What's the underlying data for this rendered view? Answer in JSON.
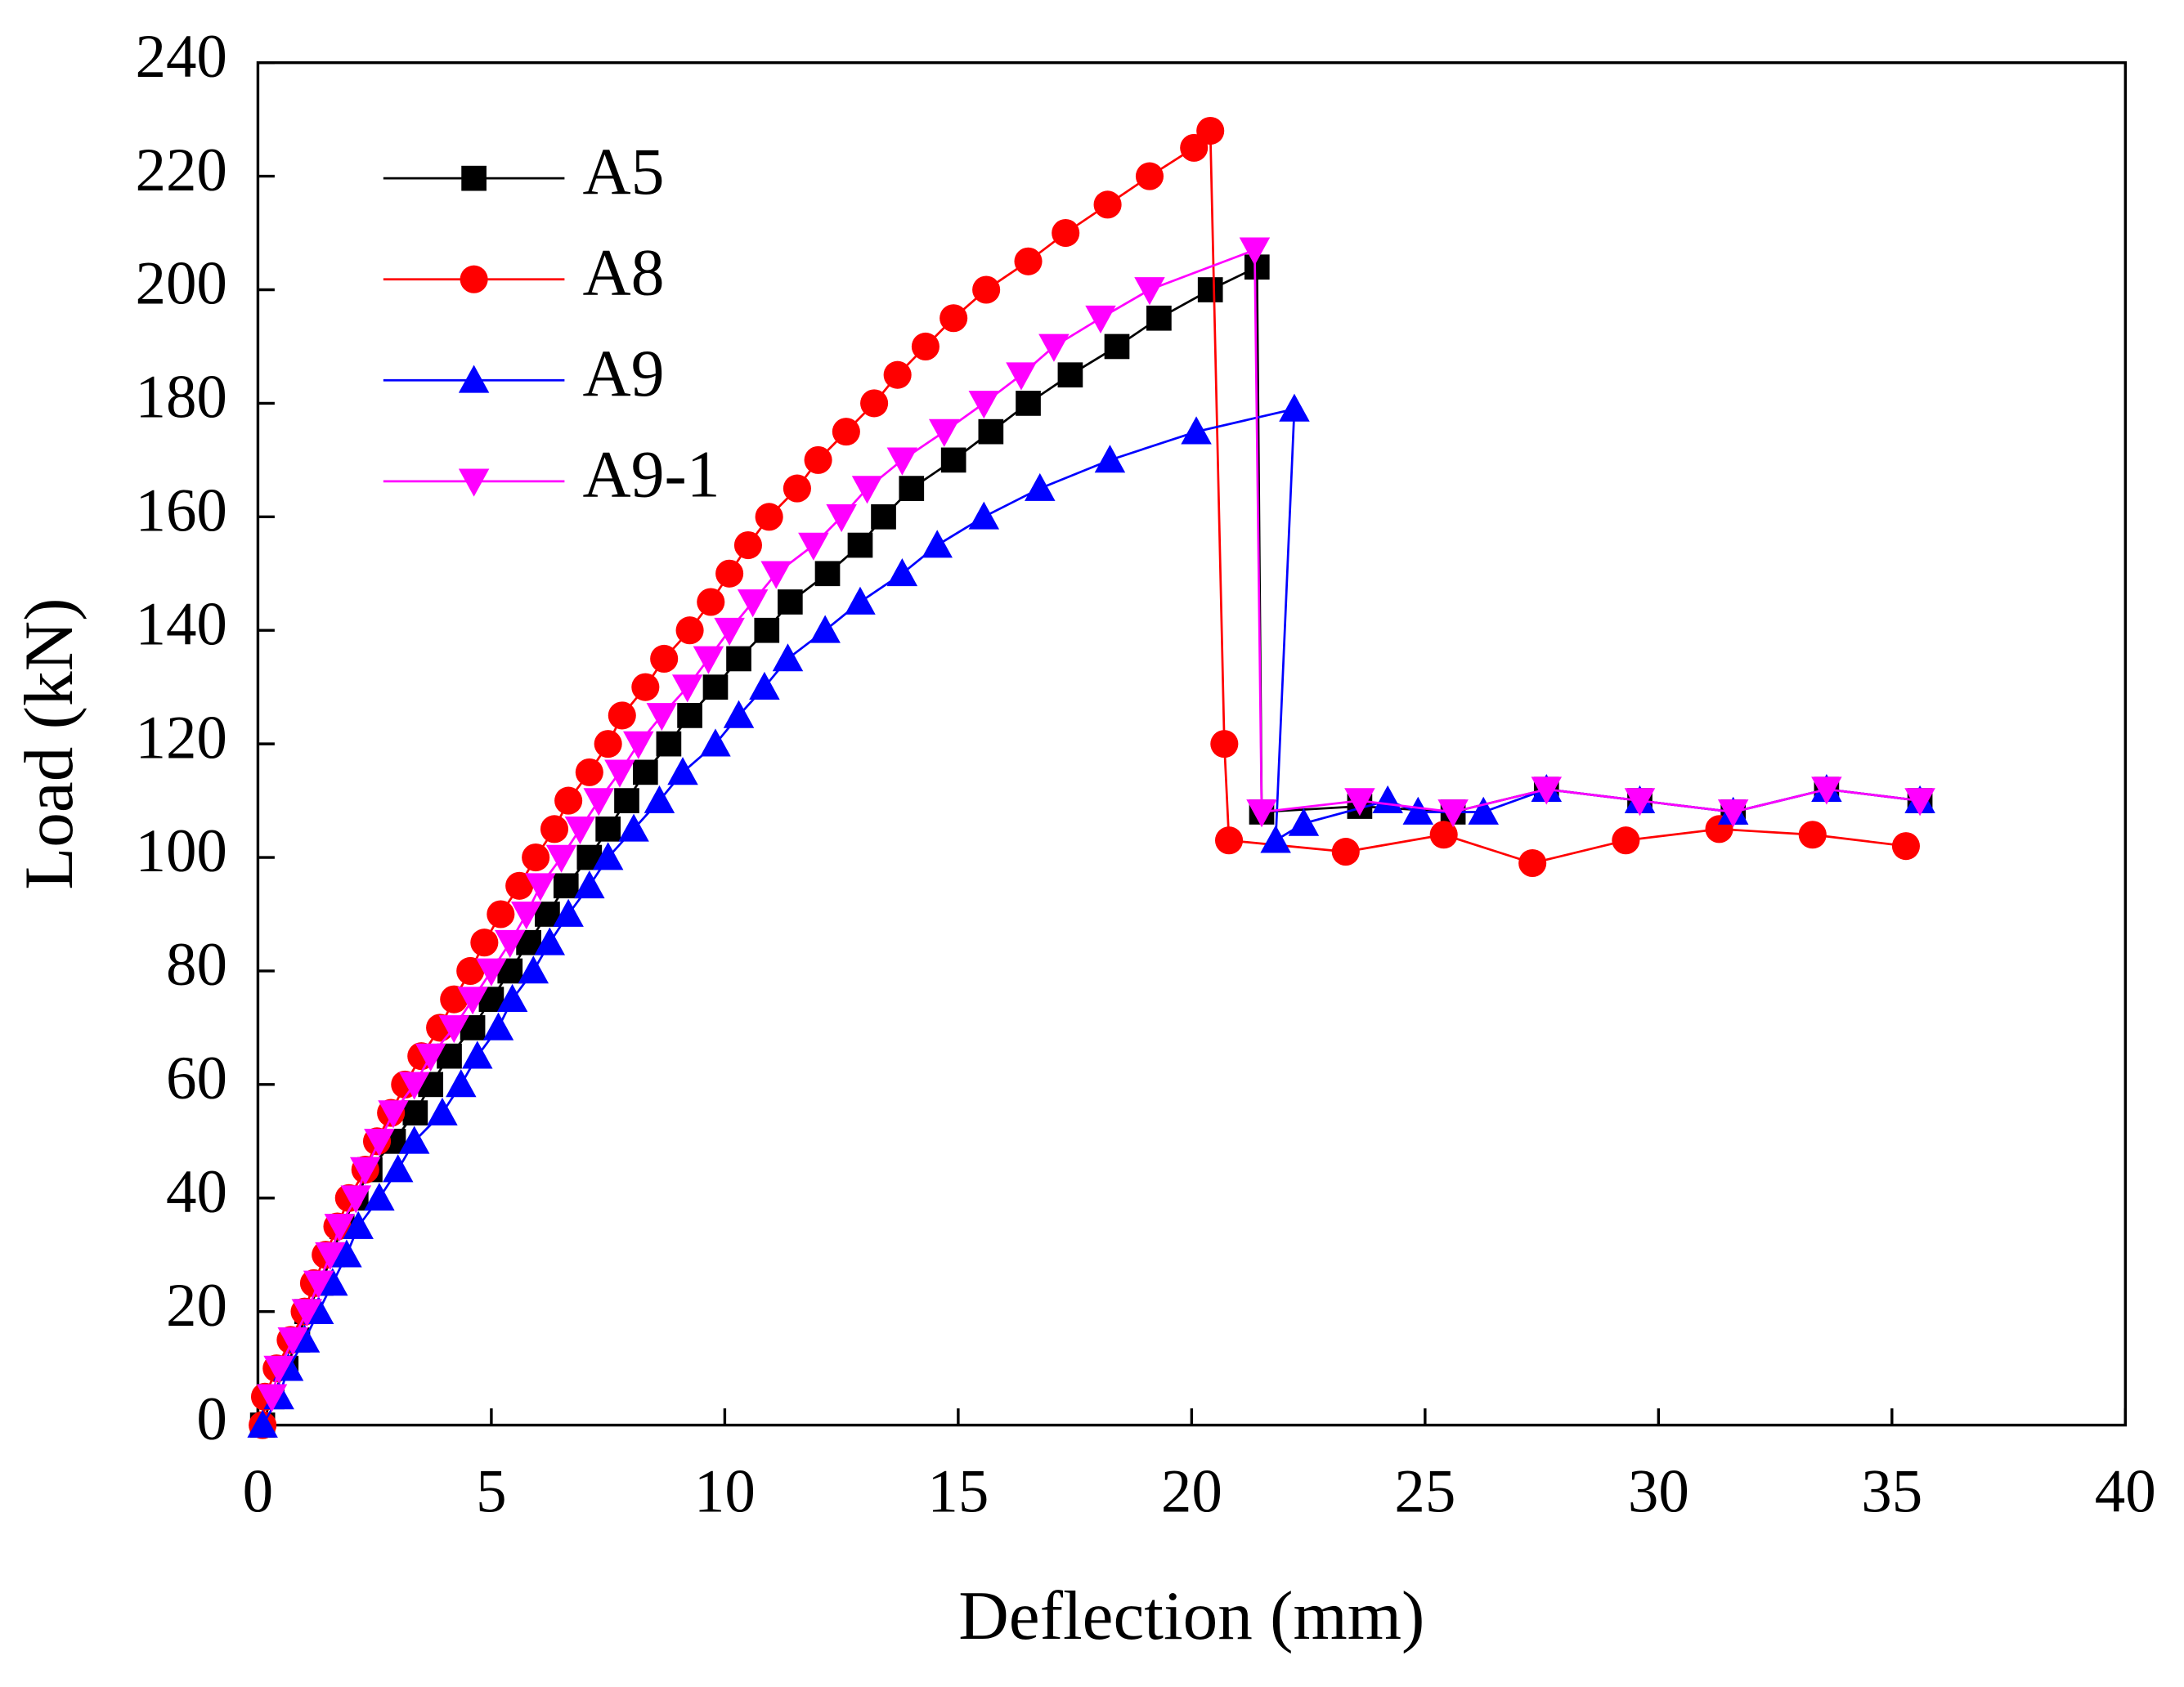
{
  "chart_data": {
    "type": "line",
    "xlabel": "Deflection (mm)",
    "ylabel": "Load (kN)",
    "xlim": [
      0,
      40
    ],
    "ylim": [
      0,
      240
    ],
    "xticks": [
      0,
      5,
      10,
      15,
      20,
      25,
      30,
      35,
      40
    ],
    "yticks": [
      0,
      20,
      40,
      60,
      80,
      100,
      120,
      140,
      160,
      180,
      200,
      220,
      240
    ],
    "legend": "upper-left",
    "series": [
      {
        "name": "A5",
        "color": "#000000",
        "marker": "square",
        "x": [
          0.1,
          0.3,
          0.6,
          0.85,
          1.05,
          1.35,
          1.6,
          1.8,
          2.1,
          2.4,
          2.9,
          3.37,
          3.7,
          4.1,
          4.6,
          5.0,
          5.4,
          5.8,
          6.2,
          6.6,
          7.1,
          7.5,
          7.9,
          8.3,
          8.8,
          9.25,
          9.8,
          10.3,
          10.9,
          11.4,
          12.2,
          12.9,
          13.4,
          14.0,
          14.9,
          15.7,
          16.5,
          17.4,
          18.4,
          19.3,
          20.4,
          21.4,
          21.5,
          23.6,
          25.6,
          27.6,
          29.6,
          31.6,
          33.6,
          35.6
        ],
        "values": [
          0,
          5,
          10,
          15,
          20,
          25,
          30,
          35,
          40,
          45,
          50,
          55,
          60,
          65,
          70,
          75,
          80,
          85,
          90,
          95,
          100,
          105,
          110,
          115,
          120,
          125,
          130,
          135,
          140,
          145,
          150,
          155,
          160,
          165,
          170,
          175,
          180,
          185,
          190,
          195,
          200,
          204,
          108,
          109,
          108,
          112,
          110,
          108,
          112,
          110
        ]
      },
      {
        "name": "A8",
        "color": "#ff0000",
        "marker": "circle",
        "x": [
          0.1,
          0.15,
          0.4,
          0.7,
          1.0,
          1.2,
          1.45,
          1.7,
          1.95,
          2.3,
          2.55,
          2.85,
          3.15,
          3.5,
          3.9,
          4.2,
          4.55,
          4.85,
          5.2,
          5.6,
          5.95,
          6.35,
          6.65,
          7.1,
          7.5,
          7.8,
          8.3,
          8.7,
          9.25,
          9.7,
          10.1,
          10.5,
          10.95,
          11.55,
          12.0,
          12.6,
          13.2,
          13.7,
          14.3,
          14.9,
          15.6,
          16.5,
          17.3,
          18.2,
          19.1,
          20.05,
          20.4,
          20.7,
          20.8,
          23.3,
          25.4,
          27.3,
          29.3,
          31.3,
          33.3,
          35.3
        ],
        "values": [
          0,
          5,
          10,
          15,
          20,
          25,
          30,
          35,
          40,
          45,
          50,
          55,
          60,
          65,
          70,
          75,
          80,
          85,
          90,
          95,
          100,
          105,
          110,
          115,
          120,
          125,
          130,
          135,
          140,
          145,
          150,
          155,
          160,
          165,
          170,
          175,
          180,
          185,
          190,
          195,
          200,
          205,
          210,
          215,
          220,
          225,
          228,
          120,
          103,
          101,
          104,
          99,
          103,
          105,
          104,
          102
        ]
      },
      {
        "name": "A9",
        "color": "#0000ff",
        "marker": "triangle-up",
        "x": [
          0.1,
          0.45,
          0.65,
          1.0,
          1.3,
          1.6,
          1.9,
          2.15,
          2.6,
          3.0,
          3.35,
          3.95,
          4.35,
          4.7,
          5.15,
          5.45,
          5.9,
          6.25,
          6.65,
          7.1,
          7.5,
          8.05,
          8.6,
          9.1,
          9.8,
          10.3,
          10.85,
          11.35,
          12.15,
          12.9,
          13.8,
          14.55,
          15.55,
          16.75,
          18.25,
          20.1,
          22.2,
          21.8,
          22.4,
          24.2,
          24.85,
          26.25,
          27.6,
          29.6,
          31.6,
          33.6,
          35.6
        ],
        "values": [
          0,
          5,
          10,
          15,
          20,
          25,
          30,
          35,
          40,
          45,
          50,
          55,
          60,
          65,
          70,
          75,
          80,
          85,
          90,
          95,
          100,
          105,
          110,
          115,
          120,
          125,
          130,
          135,
          140,
          145,
          150,
          155,
          160,
          165,
          170,
          175,
          179,
          103,
          106,
          110,
          108,
          108,
          112,
          110,
          108,
          112,
          110
        ]
      },
      {
        "name": "A9-1",
        "color": "#ff00ff",
        "marker": "triangle-down",
        "x": [
          0.3,
          0.45,
          0.75,
          1.05,
          1.3,
          1.55,
          1.75,
          2.1,
          2.3,
          2.6,
          2.9,
          3.35,
          3.7,
          4.2,
          4.6,
          5.0,
          5.4,
          5.75,
          6.05,
          6.5,
          6.9,
          7.3,
          7.75,
          8.15,
          8.65,
          9.2,
          9.65,
          10.1,
          10.6,
          11.1,
          11.9,
          12.5,
          13.05,
          13.8,
          14.7,
          15.55,
          16.35,
          17.05,
          18.05,
          19.1,
          21.35,
          21.5,
          23.6,
          25.6,
          27.6,
          29.6,
          31.6,
          33.6,
          35.6
        ],
        "values": [
          5,
          10,
          15,
          20,
          25,
          30,
          35,
          40,
          45,
          50,
          55,
          60,
          65,
          70,
          75,
          80,
          85,
          90,
          95,
          100,
          105,
          110,
          115,
          120,
          125,
          130,
          135,
          140,
          145,
          150,
          155,
          160,
          165,
          170,
          175,
          180,
          185,
          190,
          195,
          200,
          207,
          108,
          110,
          108,
          112,
          110,
          108,
          112,
          110
        ]
      }
    ]
  }
}
